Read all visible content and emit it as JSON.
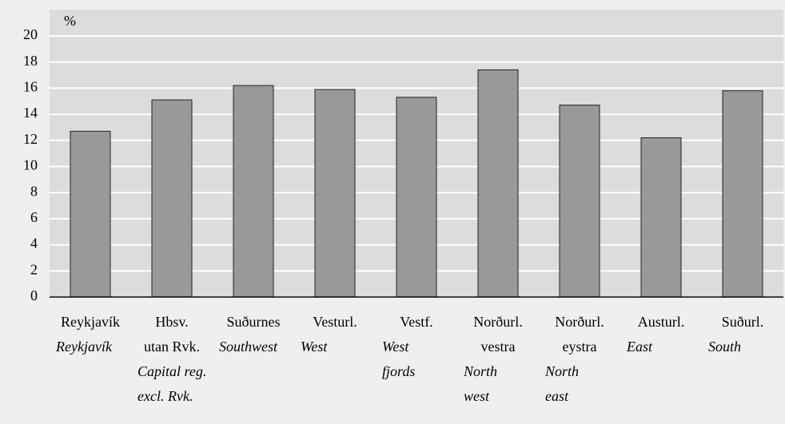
{
  "chart_data": {
    "type": "bar",
    "y_label": "%",
    "categories": [
      {
        "local": [
          "Reykjavík"
        ],
        "english": [
          "Reykjavík"
        ]
      },
      {
        "local": [
          "Hbsv.",
          "utan Rvk."
        ],
        "english": [
          "Capital reg.",
          "excl. Rvk."
        ]
      },
      {
        "local": [
          "Suðurnes"
        ],
        "english": [
          "Southwest"
        ]
      },
      {
        "local": [
          "Vesturl."
        ],
        "english": [
          "West"
        ]
      },
      {
        "local": [
          "Vestf."
        ],
        "english": [
          "West",
          "fjords"
        ]
      },
      {
        "local": [
          "Norðurl.",
          "vestra"
        ],
        "english": [
          "North",
          "west"
        ]
      },
      {
        "local": [
          "Norðurl.",
          "eystra"
        ],
        "english": [
          "North",
          "east"
        ]
      },
      {
        "local": [
          "Austurl."
        ],
        "english": [
          "East"
        ]
      },
      {
        "local": [
          "Suðurl."
        ],
        "english": [
          "South"
        ]
      }
    ],
    "values": [
      12.7,
      15.1,
      16.2,
      15.9,
      15.3,
      17.4,
      14.7,
      12.2,
      15.8
    ],
    "color": "#999999",
    "ylim": [
      0,
      20
    ],
    "yticks": [
      0,
      2,
      4,
      6,
      8,
      10,
      12,
      14,
      16,
      18,
      20
    ],
    "grid": true
  }
}
